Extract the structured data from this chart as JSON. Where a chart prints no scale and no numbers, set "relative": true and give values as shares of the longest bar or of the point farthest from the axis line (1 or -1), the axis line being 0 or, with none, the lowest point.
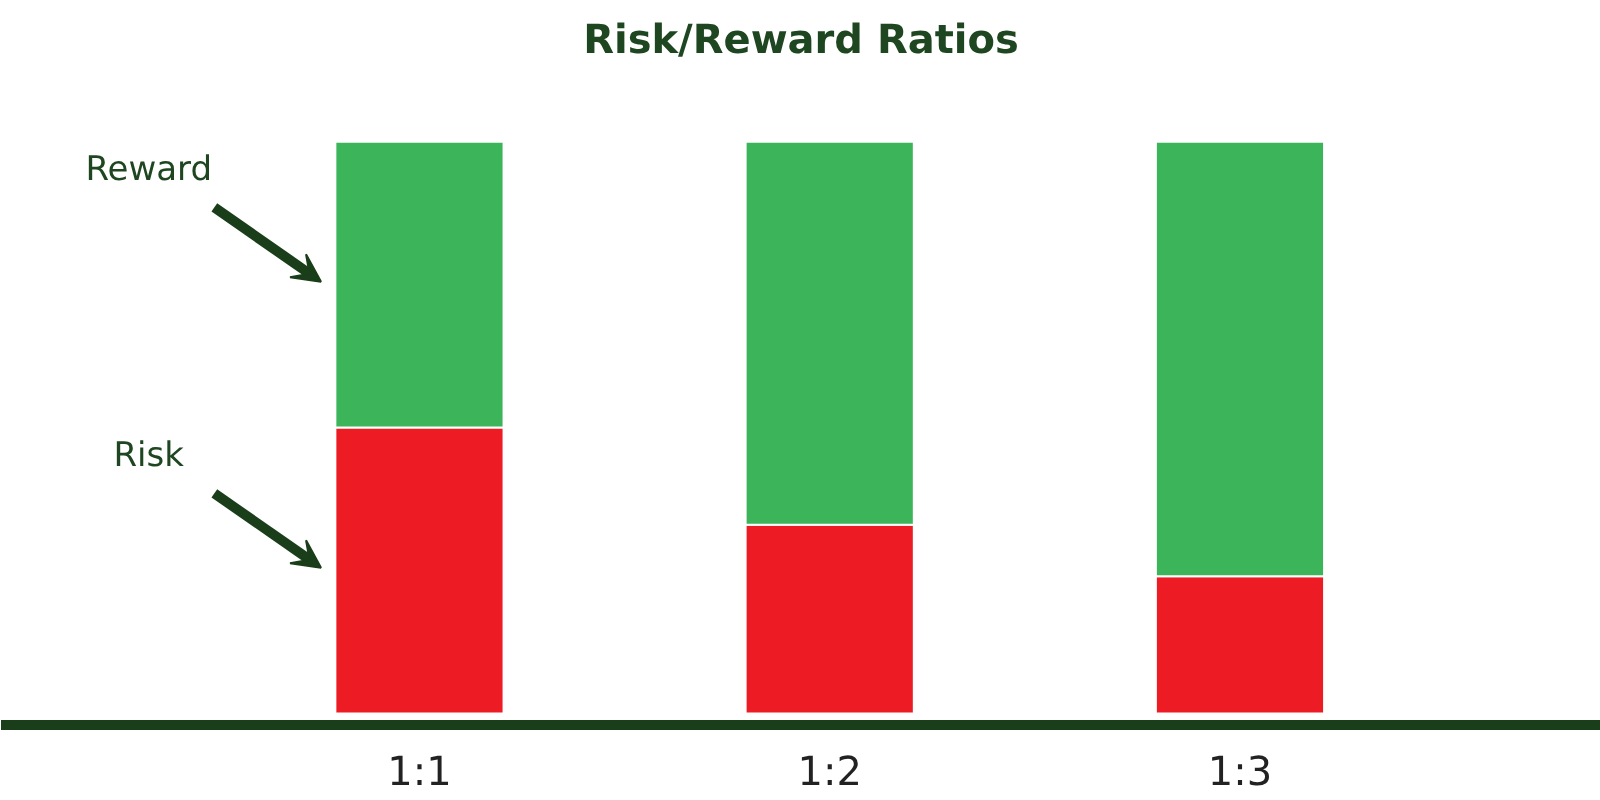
{
  "chart_data": {
    "type": "bar",
    "title": "Risk/Reward Ratios",
    "relative": true,
    "stacked": true,
    "grid": false,
    "categories": [
      "1:1",
      "1:2",
      "1:3"
    ],
    "series": [
      {
        "name": "Risk",
        "color": "#ed1c24",
        "values": [
          0.5,
          0.33,
          0.24
        ]
      },
      {
        "name": "Reward",
        "color": "#3cb55a",
        "values": [
          0.5,
          0.67,
          0.76
        ]
      }
    ]
  }
}
